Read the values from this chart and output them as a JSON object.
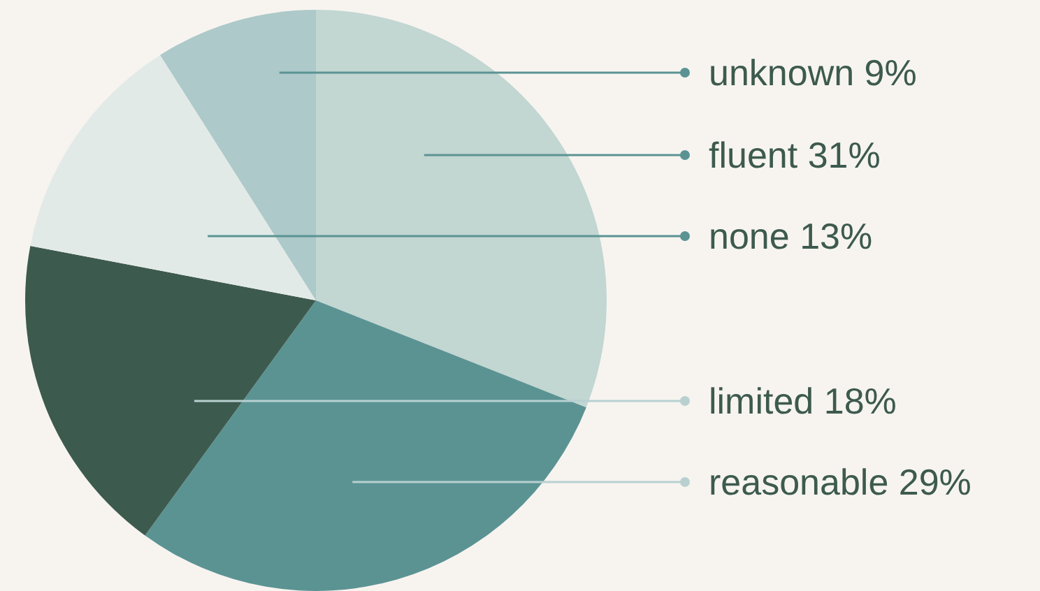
{
  "chart_data": {
    "type": "pie",
    "categories": [
      "fluent",
      "reasonable",
      "limited",
      "none",
      "unknown"
    ],
    "values": [
      31,
      29,
      18,
      13,
      9
    ],
    "colors": [
      "#c2d6d2",
      "#5b9393",
      "#3d5a4e",
      "#e2eae7",
      "#adc9c9"
    ],
    "value_labels": [
      "31%",
      "29%",
      "18%",
      "13%",
      "9%"
    ]
  }
}
